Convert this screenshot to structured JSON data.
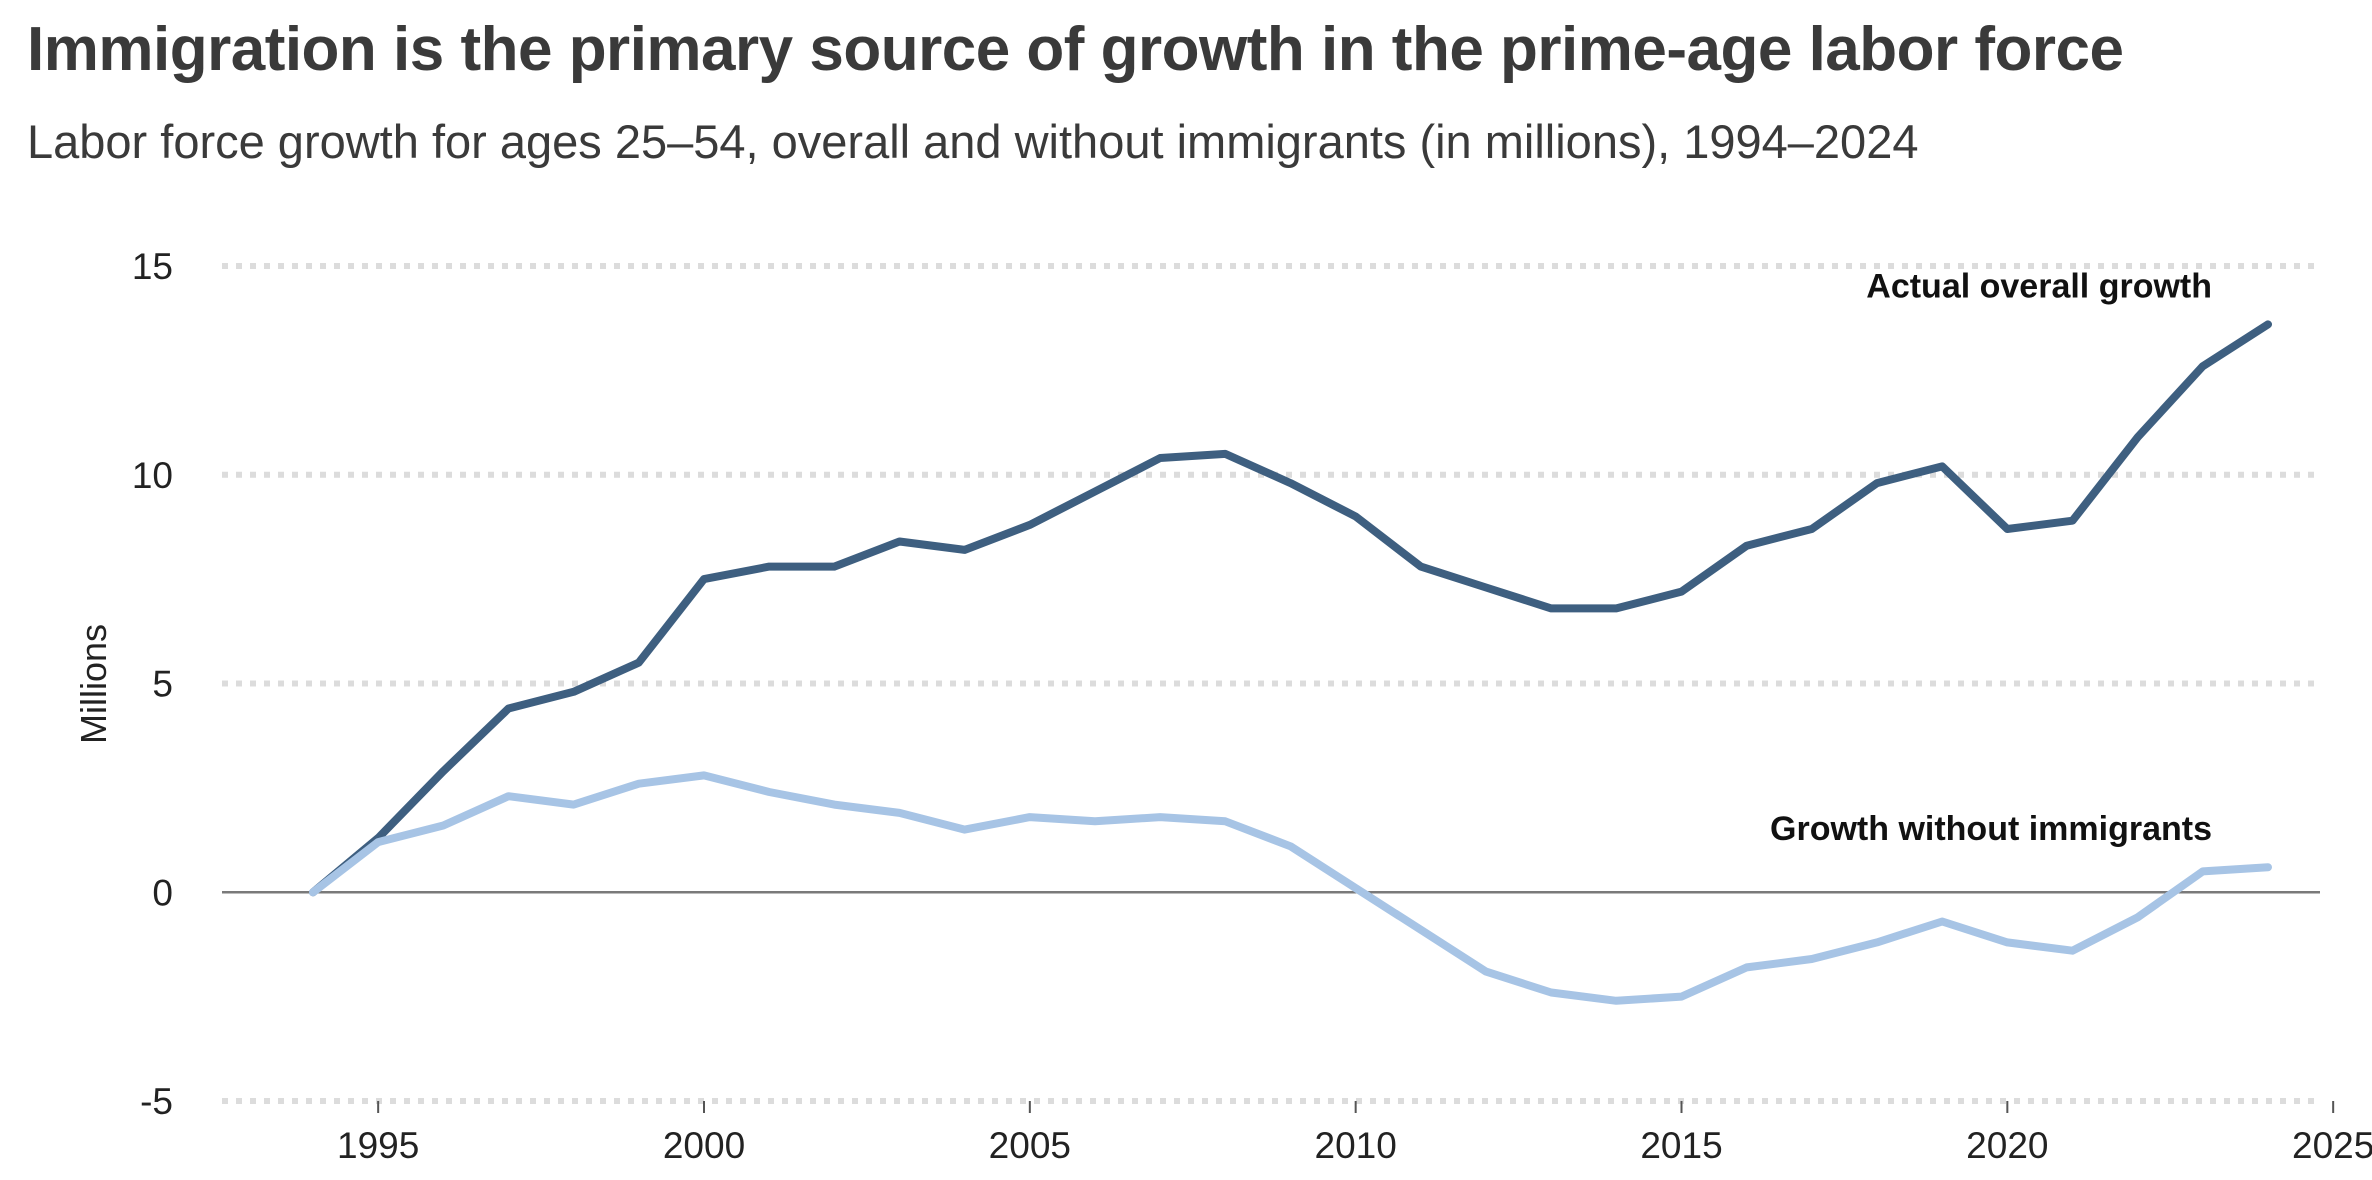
{
  "chart_data": {
    "type": "line",
    "title": "Immigration is the primary source of growth in the prime-age labor force",
    "subtitle": "Labor force growth for ages 25–54, overall and without immigrants (in millions), 1994–2024",
    "ylabel": "Millions",
    "xlabel": "",
    "xlim": [
      1991.5,
      2025.5
    ],
    "ylim": [
      -5,
      15
    ],
    "yticks": [
      "15",
      "10",
      "5",
      "0",
      "-5"
    ],
    "ytick_values": [
      15,
      10,
      5,
      0,
      -5
    ],
    "xticks": [
      "1995",
      "2000",
      "2005",
      "2010",
      "2015",
      "2020",
      "2025"
    ],
    "xtick_values": [
      1995,
      2000,
      2005,
      2010,
      2015,
      2020,
      2025
    ],
    "grid": true,
    "x": [
      1994,
      1995,
      1996,
      1997,
      1998,
      1999,
      2000,
      2001,
      2002,
      2003,
      2004,
      2005,
      2006,
      2007,
      2008,
      2009,
      2010,
      2011,
      2012,
      2013,
      2014,
      2015,
      2016,
      2017,
      2018,
      2019,
      2020,
      2021,
      2022,
      2023,
      2024
    ],
    "series": [
      {
        "name": "Actual overall growth",
        "color": "#3e5f80",
        "values": [
          0.0,
          1.3,
          2.9,
          4.4,
          4.8,
          5.5,
          7.5,
          7.8,
          7.8,
          8.4,
          8.2,
          8.8,
          9.6,
          10.4,
          10.5,
          9.8,
          9.0,
          7.8,
          7.3,
          6.8,
          6.8,
          7.2,
          8.3,
          8.7,
          9.8,
          10.2,
          8.7,
          8.9,
          10.9,
          12.6,
          13.6
        ]
      },
      {
        "name": "Growth without immigrants",
        "color": "#a7c4e5",
        "values": [
          0.0,
          1.2,
          1.6,
          2.3,
          2.1,
          2.6,
          2.8,
          2.4,
          2.1,
          1.9,
          1.5,
          1.8,
          1.7,
          1.8,
          1.7,
          1.1,
          0.1,
          -0.9,
          -1.9,
          -2.4,
          -2.6,
          -2.5,
          -1.8,
          -1.6,
          -1.2,
          -0.7,
          -1.2,
          -1.4,
          -0.6,
          0.5,
          0.6
        ]
      }
    ],
    "annotations": [
      "Actual overall growth",
      "Growth without immigrants"
    ]
  }
}
